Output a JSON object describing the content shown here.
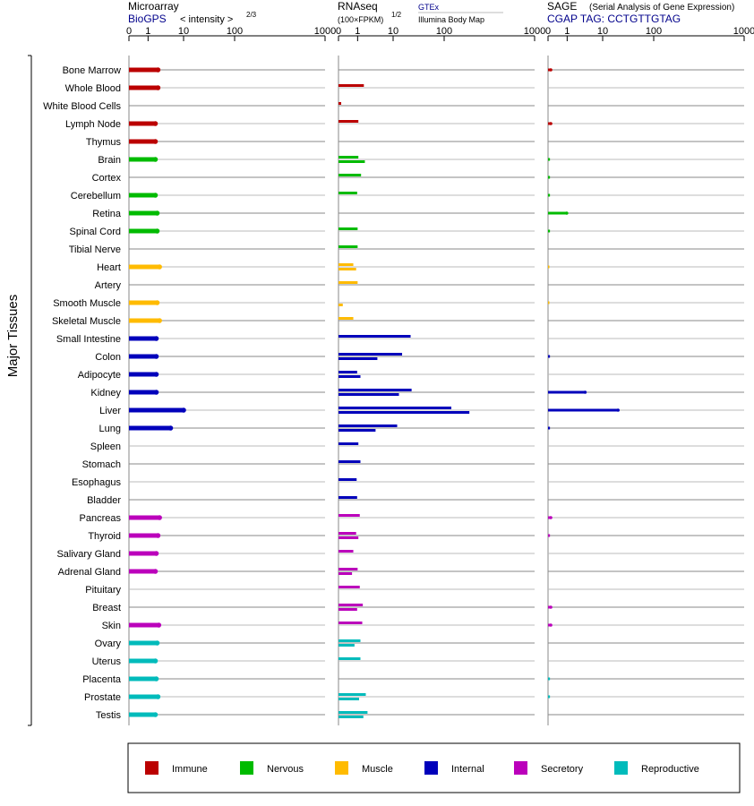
{
  "side_label": "Major Tissues",
  "tissues": [
    "Bone Marrow",
    "Whole Blood",
    "White Blood Cells",
    "Lymph Node",
    "Thymus",
    "Brain",
    "Cortex",
    "Cerebellum",
    "Retina",
    "Spinal Cord",
    "Tibial Nerve",
    "Heart",
    "Artery",
    "Smooth Muscle",
    "Skeletal Muscle",
    "Small Intestine",
    "Colon",
    "Adipocyte",
    "Kidney",
    "Liver",
    "Lung",
    "Spleen",
    "Stomach",
    "Esophagus",
    "Bladder",
    "Pancreas",
    "Thyroid",
    "Salivary Gland",
    "Adrenal Gland",
    "Pituitary",
    "Breast",
    "Skin",
    "Ovary",
    "Uterus",
    "Placenta",
    "Prostate",
    "Testis"
  ],
  "panels": [
    {
      "id": "microarray",
      "title": "Microarray",
      "source": "BioGPS",
      "units": "< intensity >",
      "exponent": "2/3",
      "ticks": [
        "0",
        "1",
        "10",
        "100",
        "1000"
      ]
    },
    {
      "id": "rnaseq",
      "title": "RNAseq",
      "units": "(100×FPKM)",
      "exponent": "1/2",
      "source_top": "GTEx",
      "source_bottom": "Illumina Body Map",
      "ticks": [
        "0",
        "1",
        "10",
        "100",
        "1000"
      ]
    },
    {
      "id": "sage",
      "title": "SAGE",
      "subtitle": "(Serial Analysis of Gene Expression)",
      "source": "CGAP TAG: CCTGTTGTAG",
      "ticks": [
        "0",
        "1",
        "10",
        "100",
        "1000"
      ]
    }
  ],
  "legend": [
    {
      "name": "Immune",
      "color": "#bb0000"
    },
    {
      "name": "Nervous",
      "color": "#00bb00"
    },
    {
      "name": "Muscle",
      "color": "#ffbb00"
    },
    {
      "name": "Internal",
      "color": "#0000bb"
    },
    {
      "name": "Secretory",
      "color": "#bb00bb"
    },
    {
      "name": "Reproductive",
      "color": "#00bbbb"
    }
  ],
  "chart_data": {
    "type": "bar",
    "orientation": "horizontal",
    "x_scale": "log",
    "xlim": [
      0,
      1000
    ],
    "tissue_groups": [
      "Immune",
      "Immune",
      "Immune",
      "Immune",
      "Immune",
      "Nervous",
      "Nervous",
      "Nervous",
      "Nervous",
      "Nervous",
      "Nervous",
      "Muscle",
      "Muscle",
      "Muscle",
      "Muscle",
      "Internal",
      "Internal",
      "Internal",
      "Internal",
      "Internal",
      "Internal",
      "Internal",
      "Internal",
      "Internal",
      "Internal",
      "Secretory",
      "Secretory",
      "Secretory",
      "Secretory",
      "Secretory",
      "Secretory",
      "Secretory",
      "Reproductive",
      "Reproductive",
      "Reproductive",
      "Reproductive",
      "Reproductive"
    ],
    "microarray": [
      1.9,
      1.9,
      null,
      1.6,
      1.6,
      1.6,
      null,
      1.6,
      1.8,
      1.8,
      null,
      2.1,
      null,
      1.8,
      2.1,
      1.7,
      1.7,
      1.7,
      1.7,
      10.0,
      4.3,
      null,
      null,
      null,
      null,
      2.1,
      1.9,
      1.7,
      1.6,
      null,
      null,
      2.0,
      1.8,
      1.6,
      1.7,
      1.9,
      1.6
    ],
    "rnaseq_gtex": [
      null,
      1.5,
      0.02,
      1.05,
      null,
      1.05,
      1.25,
      0.95,
      null,
      1.0,
      1.0,
      0.6,
      1.0,
      null,
      0.6,
      22,
      15,
      0.95,
      23,
      120,
      12,
      1.05,
      1.2,
      0.9,
      0.95,
      1.15,
      0.85,
      0.6,
      1.0,
      1.15,
      1.4,
      1.35,
      1.2,
      1.2,
      null,
      1.7,
      1.9
    ],
    "rnaseq_bodymap": [
      null,
      null,
      null,
      null,
      null,
      1.6,
      null,
      null,
      null,
      null,
      null,
      0.85,
      null,
      0.05,
      null,
      null,
      3.6,
      1.2,
      13,
      190,
      3.2,
      null,
      null,
      null,
      null,
      null,
      1.05,
      null,
      0.5,
      null,
      0.95,
      null,
      0.7,
      null,
      null,
      1.1,
      1.45
    ],
    "sage": [
      0.02,
      null,
      null,
      0.02,
      null,
      0.01,
      0.01,
      0.01,
      0.95,
      0.01,
      null,
      0.005,
      null,
      0.005,
      null,
      null,
      0.01,
      null,
      3.2,
      20,
      0.01,
      null,
      null,
      null,
      null,
      0.02,
      0.01,
      null,
      null,
      null,
      0.02,
      0.02,
      null,
      null,
      0.01,
      0.01,
      null
    ]
  }
}
